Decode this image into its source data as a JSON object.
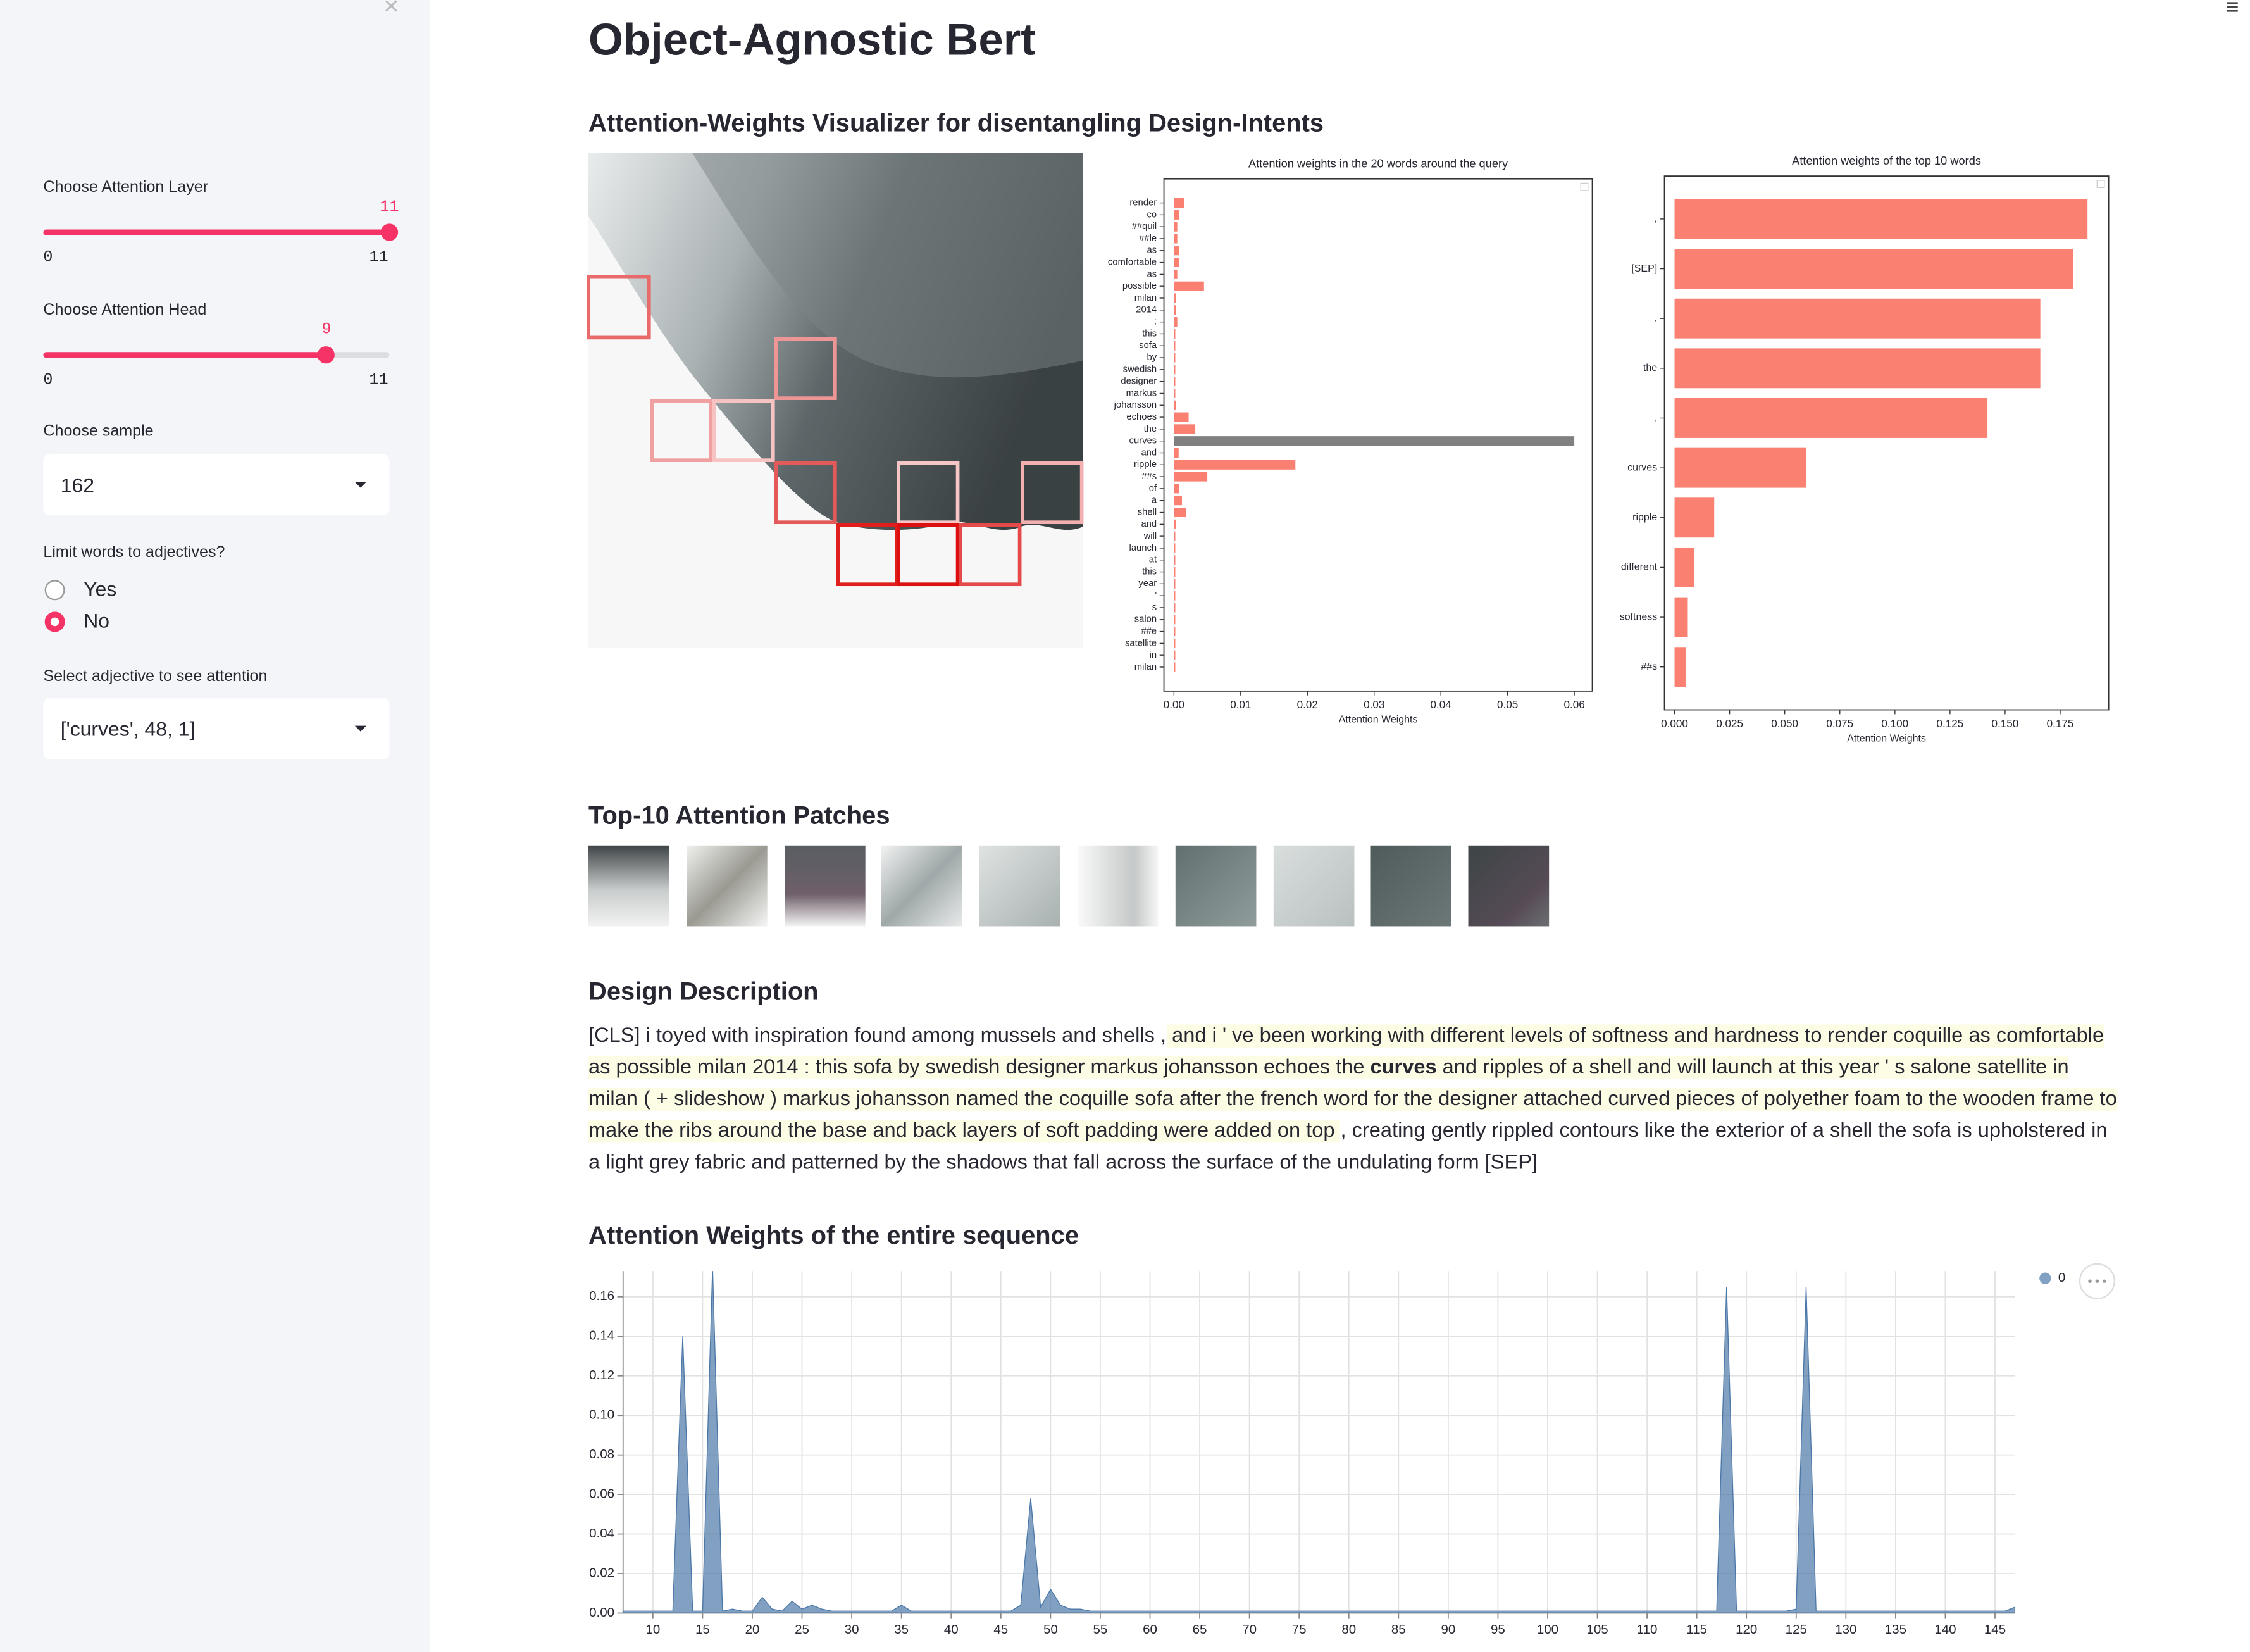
{
  "sidebar": {
    "layer": {
      "label": "Choose Attention Layer",
      "value": 11,
      "min": 0,
      "max": 11
    },
    "head": {
      "label": "Choose Attention Head",
      "value": 9,
      "min": 0,
      "max": 11
    },
    "sample": {
      "label": "Choose sample",
      "value": "162"
    },
    "adjectives": {
      "label": "Limit words to adjectives?",
      "options": [
        "Yes",
        "No"
      ],
      "selected_index": 1
    },
    "adjective": {
      "label": "Select adjective to see attention",
      "value": "['curves', 48, 1]"
    }
  },
  "header": {
    "title": "Object-Agnostic Bert",
    "subtitle": "Attention-Weights Visualizer for disentangling Design-Intents"
  },
  "sections": {
    "patches": "Top-10 Attention Patches",
    "description": "Design Description",
    "sequence": "Attention Weights of the entire sequence"
  },
  "description": [
    {
      "text": "[CLS] i toyed with inspiration found among mussels and shells ,",
      "highlight": false,
      "bold": false
    },
    {
      "text": " and i ' ve been working with different levels of softness and hardness to render coquille as comfortable as possible milan 2014 : this sofa by swedish designer markus johansson echoes the ",
      "highlight": true,
      "bold": false
    },
    {
      "text": "curves",
      "highlight": true,
      "bold": true
    },
    {
      "text": " and ripples of a shell and will launch at this year ' s salone satellite in milan ( + slideshow ) markus johansson named the coquille sofa after the french word for the designer attached curved pieces of polyether foam to the wooden frame to make the ribs around the base and back layers of soft padding were added on top ",
      "highlight": true,
      "bold": false
    },
    {
      "text": ", creating gently rippled contours like the exterior of a shell the sofa is upholstered in a light grey fabric and patterned by the shadows that fall across the surface of the undulating form [SEP]",
      "highlight": false,
      "bold": false
    }
  ],
  "chart_data": [
    {
      "type": "hbar",
      "title": "Attention weights in the 20 words around the query",
      "xlabel": "Attention Weights",
      "categories": [
        "render",
        "co",
        "##quil",
        "##le",
        "as",
        "comfortable",
        "as",
        "possible",
        "milan",
        "2014",
        ":",
        "this",
        "sofa",
        "by",
        "swedish",
        "designer",
        "markus",
        "johansson",
        "echoes",
        "the",
        "curves",
        "and",
        "ripple",
        "##s",
        "of",
        "a",
        "shell",
        "and",
        "will",
        "launch",
        "at",
        "this",
        "year",
        "'",
        "s",
        "salon",
        "##e",
        "satellite",
        "in",
        "milan"
      ],
      "values": [
        0.0015,
        0.0008,
        0.0005,
        0.0005,
        0.0008,
        0.0008,
        0.0005,
        0.0045,
        0.0003,
        0.0003,
        0.0005,
        0.0002,
        0.0002,
        0.0002,
        0.0002,
        0.0002,
        0.0002,
        0.0003,
        0.0022,
        0.0032,
        0.06,
        0.0007,
        0.0182,
        0.005,
        0.0008,
        0.0012,
        0.0018,
        0.0003,
        0.0002,
        0.0002,
        0.0002,
        0.0002,
        0.0002,
        0.0002,
        0.0002,
        0.0002,
        0.0002,
        0.0002,
        0.0002,
        0.0002
      ],
      "color": "#fa8072",
      "highlight": {
        "category_index": 20,
        "color": "#808080"
      },
      "xlim": [
        -0.0015,
        0.0627
      ],
      "xticks": [
        {
          "value": 0,
          "label": "0.00"
        },
        {
          "value": 0.01,
          "label": "0.01"
        },
        {
          "value": 0.02,
          "label": "0.02"
        },
        {
          "value": 0.03,
          "label": "0.03"
        },
        {
          "value": 0.04,
          "label": "0.04"
        },
        {
          "value": 0.05,
          "label": "0.05"
        },
        {
          "value": 0.06,
          "label": "0.06"
        }
      ]
    },
    {
      "type": "hbar",
      "title": "Attention weights of the top 10 words",
      "xlabel": "Attention Weights",
      "categories": [
        ",",
        "[SEP]",
        ".",
        "the",
        ",",
        "curves",
        "ripple",
        "different",
        "softness",
        "##s"
      ],
      "values": [
        0.1874,
        0.181,
        0.166,
        0.166,
        0.142,
        0.0596,
        0.018,
        0.009,
        0.006,
        0.005
      ],
      "color": "#fa8072",
      "xlim": [
        -0.0046,
        0.197
      ],
      "xticks": [
        {
          "value": 0,
          "label": "0.000"
        },
        {
          "value": 0.025,
          "label": "0.025"
        },
        {
          "value": 0.05,
          "label": "0.050"
        },
        {
          "value": 0.075,
          "label": "0.075"
        },
        {
          "value": 0.1,
          "label": "0.100"
        },
        {
          "value": 0.125,
          "label": "0.125"
        },
        {
          "value": 0.15,
          "label": "0.150"
        },
        {
          "value": 0.175,
          "label": "0.175"
        }
      ]
    },
    {
      "type": "area",
      "grid": true,
      "x": [
        7,
        8,
        9,
        10,
        11,
        12,
        13,
        14,
        15,
        16,
        17,
        18,
        19,
        20,
        21,
        22,
        23,
        24,
        25,
        26,
        27,
        28,
        29,
        30,
        31,
        32,
        33,
        34,
        35,
        36,
        37,
        38,
        39,
        40,
        41,
        42,
        43,
        44,
        45,
        46,
        47,
        48,
        49,
        50,
        51,
        52,
        53,
        54,
        55,
        56,
        57,
        58,
        59,
        60,
        61,
        62,
        63,
        64,
        65,
        66,
        67,
        68,
        69,
        70,
        71,
        72,
        73,
        74,
        75,
        76,
        77,
        78,
        79,
        80,
        81,
        82,
        83,
        84,
        85,
        86,
        87,
        88,
        89,
        90,
        91,
        92,
        93,
        94,
        95,
        96,
        97,
        98,
        99,
        100,
        101,
        102,
        103,
        104,
        105,
        106,
        107,
        108,
        109,
        110,
        111,
        112,
        113,
        114,
        115,
        116,
        117,
        118,
        119,
        120,
        121,
        122,
        123,
        124,
        125,
        126,
        127,
        128,
        129,
        130,
        131,
        132,
        133,
        134,
        135,
        136,
        137,
        138,
        139,
        140,
        141,
        142,
        143,
        144,
        145,
        146,
        147
      ],
      "series": [
        {
          "name": "0",
          "color": "#4c78a8",
          "values": [
            0.001,
            0.001,
            0.001,
            0.001,
            0.001,
            0.001,
            0.14,
            0.001,
            0.001,
            0.175,
            0.001,
            0.002,
            0.001,
            0.001,
            0.008,
            0.002,
            0.001,
            0.006,
            0.002,
            0.004,
            0.002,
            0.001,
            0.001,
            0.001,
            0.001,
            0.001,
            0.001,
            0.001,
            0.004,
            0.001,
            0.001,
            0.001,
            0.001,
            0.001,
            0.001,
            0.001,
            0.001,
            0.001,
            0.001,
            0.001,
            0.004,
            0.058,
            0.003,
            0.012,
            0.004,
            0.002,
            0.002,
            0.001,
            0.001,
            0.001,
            0.001,
            0.001,
            0.001,
            0.001,
            0.001,
            0.001,
            0.001,
            0.001,
            0.001,
            0.001,
            0.001,
            0.001,
            0.001,
            0.001,
            0.001,
            0.001,
            0.001,
            0.001,
            0.001,
            0.001,
            0.001,
            0.001,
            0.001,
            0.001,
            0.001,
            0.001,
            0.001,
            0.001,
            0.001,
            0.001,
            0.001,
            0.001,
            0.001,
            0.001,
            0.001,
            0.001,
            0.001,
            0.001,
            0.001,
            0.001,
            0.001,
            0.001,
            0.001,
            0.001,
            0.001,
            0.001,
            0.001,
            0.001,
            0.001,
            0.001,
            0.001,
            0.001,
            0.001,
            0.001,
            0.001,
            0.001,
            0.001,
            0.001,
            0.001,
            0.001,
            0.001,
            0.165,
            0.001,
            0.001,
            0.001,
            0.001,
            0.001,
            0.001,
            0.002,
            0.165,
            0.001,
            0.001,
            0.001,
            0.001,
            0.001,
            0.001,
            0.001,
            0.001,
            0.001,
            0.001,
            0.001,
            0.001,
            0.001,
            0.001,
            0.001,
            0.001,
            0.001,
            0.001,
            0.001,
            0.001,
            0.003
          ]
        }
      ],
      "xlim": [
        7,
        147
      ],
      "ylim": [
        0,
        0.173
      ],
      "xticks": [
        10,
        15,
        20,
        25,
        30,
        35,
        40,
        45,
        50,
        55,
        60,
        65,
        70,
        75,
        80,
        85,
        90,
        95,
        100,
        105,
        110,
        115,
        120,
        125,
        130,
        135,
        140,
        145
      ],
      "yticks": [
        {
          "value": 0,
          "label": "0.00"
        },
        {
          "value": 0.02,
          "label": "0.02"
        },
        {
          "value": 0.04,
          "label": "0.04"
        },
        {
          "value": 0.06,
          "label": "0.06"
        },
        {
          "value": 0.08,
          "label": "0.08"
        },
        {
          "value": 0.1,
          "label": "0.10"
        },
        {
          "value": 0.12,
          "label": "0.12"
        },
        {
          "value": 0.14,
          "label": "0.14"
        },
        {
          "value": 0.16,
          "label": "0.16"
        }
      ]
    }
  ]
}
